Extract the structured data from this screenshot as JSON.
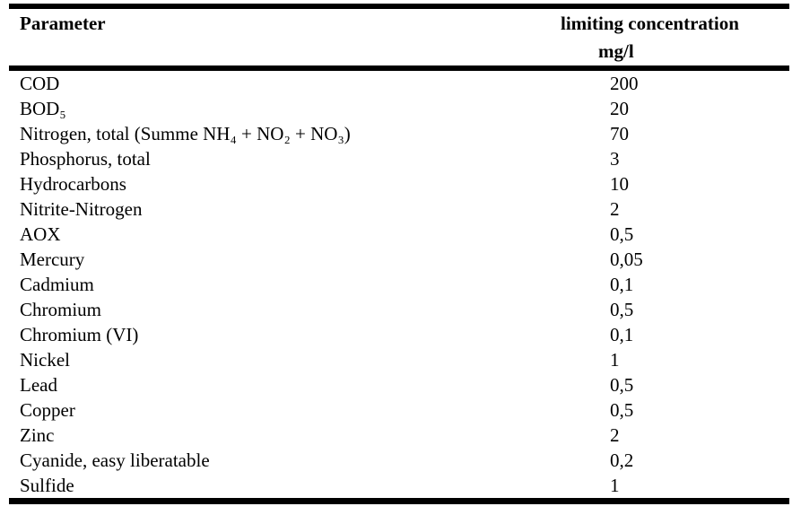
{
  "page": {
    "background": "#ffffff",
    "text_color": "#000000"
  },
  "table": {
    "header": {
      "parameter": "Parameter",
      "limiting_concentration": "limiting concentration",
      "unit": "mg/l"
    },
    "rows": [
      {
        "parameter": "COD",
        "value": "200"
      },
      {
        "parameter": "BOD₅",
        "value": "20"
      },
      {
        "parameter": "Nitrogen, total (Summe NH₄ + NO₂ + NO₃)",
        "value": "70"
      },
      {
        "parameter": "Phosphorus, total",
        "value": "3"
      },
      {
        "parameter": "Hydrocarbons",
        "value": "10"
      },
      {
        "parameter": "Nitrite-Nitrogen",
        "value": "2"
      },
      {
        "parameter": "AOX",
        "value": "0,5"
      },
      {
        "parameter": "Mercury",
        "value": "0,05"
      },
      {
        "parameter": "Cadmium",
        "value": "0,1"
      },
      {
        "parameter": "Chromium",
        "value": "0,5"
      },
      {
        "parameter": "Chromium (VI)",
        "value": "0,1"
      },
      {
        "parameter": "Nickel",
        "value": "1"
      },
      {
        "parameter": "Lead",
        "value": "0,5"
      },
      {
        "parameter": "Copper",
        "value": "0,5"
      },
      {
        "parameter": "Zinc",
        "value": "2"
      },
      {
        "parameter": "Cyanide, easy liberatable",
        "value": "0,2"
      },
      {
        "parameter": "Sulfide",
        "value": "1"
      }
    ]
  }
}
